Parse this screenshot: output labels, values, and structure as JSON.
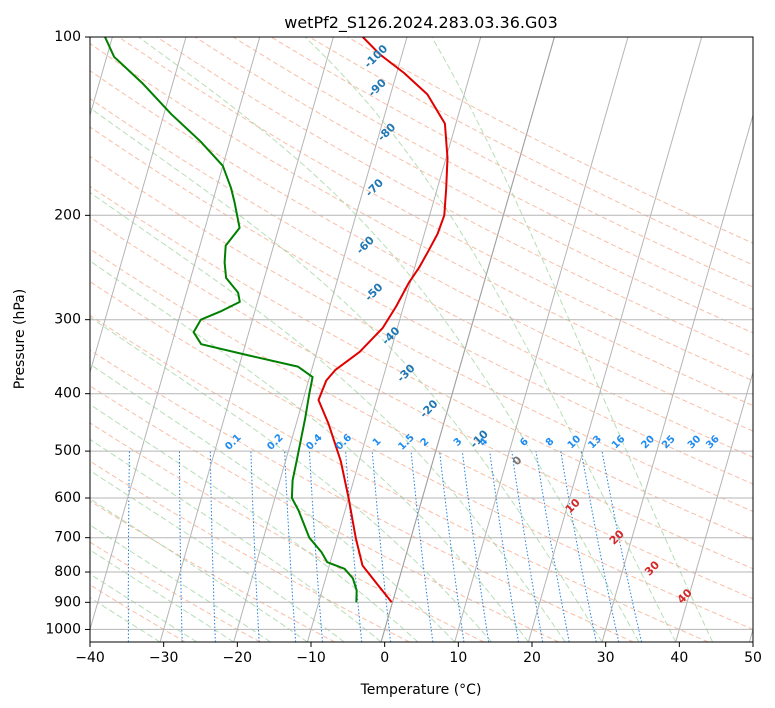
{
  "chart_data": {
    "type": "skew-t",
    "title": "wetPf2_S126.2024.283.03.36.G03",
    "xlabel": "Temperature (°C)",
    "ylabel": "Pressure (hPa)",
    "xlim": [
      -40,
      50
    ],
    "ylim": [
      1050,
      100
    ],
    "y_scale": "log",
    "x_ticks": [
      -40,
      -30,
      -20,
      -10,
      0,
      10,
      20,
      30,
      40,
      50
    ],
    "y_ticks": [
      100,
      200,
      300,
      400,
      500,
      600,
      700,
      800,
      900,
      1000
    ],
    "grid": true,
    "series": [
      {
        "kind": "temperature",
        "color": "#e00000",
        "points": [
          [
            -0.1,
            900
          ],
          [
            -2.7,
            840
          ],
          [
            -5.5,
            780
          ],
          [
            -7.5,
            700
          ],
          [
            -10,
            600
          ],
          [
            -12.5,
            520
          ],
          [
            -15.6,
            450
          ],
          [
            -17.9,
            410
          ],
          [
            -17.6,
            380
          ],
          [
            -16.8,
            365
          ],
          [
            -14.2,
            340
          ],
          [
            -12,
            310
          ],
          [
            -11,
            285
          ],
          [
            -10.2,
            260
          ],
          [
            -9.4,
            245
          ],
          [
            -8.8,
            230
          ],
          [
            -8.2,
            215
          ],
          [
            -8,
            200
          ],
          [
            -8.8,
            180
          ],
          [
            -9.8,
            160
          ],
          [
            -11.5,
            140
          ],
          [
            -15,
            125
          ],
          [
            -19,
            115
          ],
          [
            -23,
            107
          ],
          [
            -26,
            100
          ]
        ]
      },
      {
        "kind": "dewpoint",
        "color": "#008000",
        "points": [
          [
            -4.9,
            900
          ],
          [
            -5.3,
            860
          ],
          [
            -6.3,
            820
          ],
          [
            -7.8,
            790
          ],
          [
            -10.4,
            770
          ],
          [
            -11.6,
            740
          ],
          [
            -13.8,
            700
          ],
          [
            -15.2,
            660
          ],
          [
            -16.3,
            630
          ],
          [
            -17.7,
            600
          ],
          [
            -18.3,
            560
          ],
          [
            -18.5,
            520
          ],
          [
            -18.8,
            470
          ],
          [
            -19,
            440
          ],
          [
            -19.4,
            400
          ],
          [
            -19.6,
            375
          ],
          [
            -22,
            360
          ],
          [
            -29,
            345
          ],
          [
            -36,
            330
          ],
          [
            -37.5,
            315
          ],
          [
            -37,
            300
          ],
          [
            -34.5,
            290
          ],
          [
            -32.4,
            280
          ],
          [
            -33,
            270
          ],
          [
            -35.2,
            255
          ],
          [
            -36,
            240
          ],
          [
            -36.5,
            225
          ],
          [
            -35.3,
            210
          ],
          [
            -37,
            190
          ],
          [
            -38,
            180
          ],
          [
            -40,
            165
          ],
          [
            -44,
            150
          ],
          [
            -49,
            135
          ],
          [
            -54,
            120
          ],
          [
            -59,
            108
          ],
          [
            -61,
            100
          ]
        ]
      }
    ],
    "dry_adiabat_labels": [
      {
        "text": "-100",
        "t": -23.4,
        "p": 108
      },
      {
        "text": "-90",
        "t": -22,
        "p": 122
      },
      {
        "text": "-80",
        "t": -19,
        "p": 145
      },
      {
        "text": "-70",
        "t": -18.5,
        "p": 180
      },
      {
        "text": "-60",
        "t": -17.5,
        "p": 225
      },
      {
        "text": "-50",
        "t": -14.5,
        "p": 270
      },
      {
        "text": "-40",
        "t": -10.5,
        "p": 320
      },
      {
        "text": "-30",
        "t": -7,
        "p": 370
      },
      {
        "text": "-20",
        "t": -2.5,
        "p": 425
      },
      {
        "text": "-10",
        "t": 5.5,
        "p": 478
      }
    ],
    "mixing_ratio_labels": [
      {
        "text": "0.1",
        "t": -27.5
      },
      {
        "text": "0.2",
        "t": -21.8
      },
      {
        "text": "0.4",
        "t": -16.5
      },
      {
        "text": "0.6",
        "t": -12.5
      },
      {
        "text": "1",
        "t": -8
      },
      {
        "text": "1.5",
        "t": -4
      },
      {
        "text": "2",
        "t": -1.5
      },
      {
        "text": "3",
        "t": 3
      },
      {
        "text": "4",
        "t": 6.5
      },
      {
        "text": "6",
        "t": 12
      },
      {
        "text": "8",
        "t": 15.5
      },
      {
        "text": "10",
        "t": 18.8
      },
      {
        "text": "13",
        "t": 21.6
      },
      {
        "text": "16",
        "t": 24.8
      },
      {
        "text": "20",
        "t": 28.8
      },
      {
        "text": "25",
        "t": 31.6
      },
      {
        "text": "30",
        "t": 35.1
      },
      {
        "text": "36",
        "t": 37.6
      }
    ],
    "moist_adiabat_labels": [
      {
        "text": "0",
        "t": 11.5,
        "p": 520
      },
      {
        "text": "10",
        "t": 20.8,
        "p": 620
      },
      {
        "text": "20",
        "t": 28,
        "p": 700
      },
      {
        "text": "30",
        "t": 34,
        "p": 790
      },
      {
        "text": "40",
        "t": 39.5,
        "p": 880
      }
    ]
  }
}
